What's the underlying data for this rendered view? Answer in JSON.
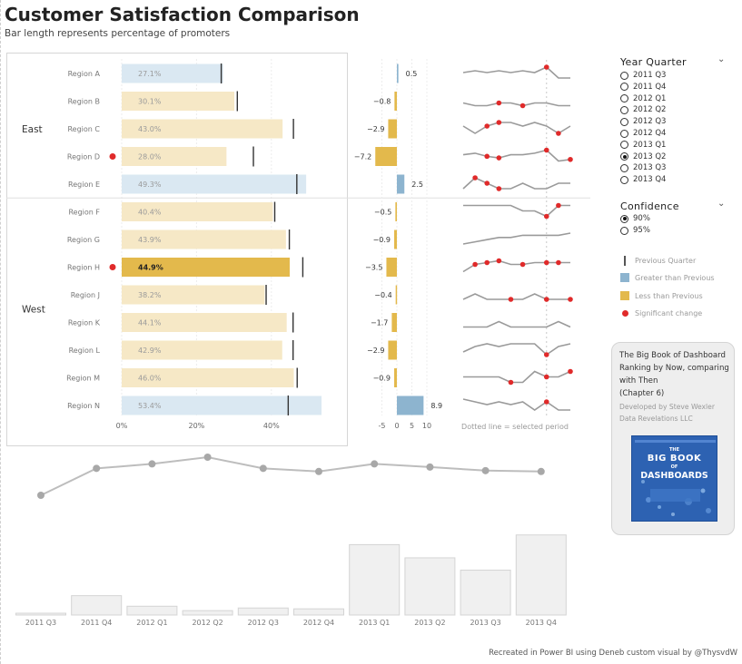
{
  "header": {
    "title": "Customer Satisfaction Comparison",
    "subtitle": "Bar length represents percentage of promoters"
  },
  "colors": {
    "greater": "#dae8f2",
    "greater_selected": "#8db4cf",
    "less": "#f6e8c6",
    "less_selected": "#e3b94c",
    "significant": "#e02a2a",
    "line": "#9a9a9a"
  },
  "chart_data": [
    {
      "type": "bar",
      "name_hint": "promoters-by-region",
      "groups": [
        {
          "label": "East",
          "regions": [
            "Region A",
            "Region B",
            "Region C",
            "Region D",
            "Region E"
          ]
        },
        {
          "label": "West",
          "regions": [
            "Region F",
            "Region G",
            "Region H",
            "Region J",
            "Region K",
            "Region L",
            "Region M",
            "Region N"
          ]
        }
      ],
      "rows": [
        {
          "region": "Region A",
          "value": 27.1,
          "label": "27.1%",
          "previous": 26.6,
          "change": 0.5,
          "direction": "greater",
          "significant": false,
          "selected": false
        },
        {
          "region": "Region B",
          "value": 30.1,
          "label": "30.1%",
          "previous": 30.9,
          "change": -0.8,
          "direction": "less",
          "significant": false,
          "selected": false
        },
        {
          "region": "Region C",
          "value": 43.0,
          "label": "43.0%",
          "previous": 45.9,
          "change": -2.9,
          "direction": "less",
          "significant": false,
          "selected": false
        },
        {
          "region": "Region D",
          "value": 28.0,
          "label": "28.0%",
          "previous": 35.2,
          "change": -7.2,
          "direction": "less",
          "significant": true,
          "selected": true
        },
        {
          "region": "Region E",
          "value": 49.3,
          "label": "49.3%",
          "previous": 46.8,
          "change": 2.5,
          "direction": "greater",
          "significant": false,
          "selected": true
        },
        {
          "region": "Region F",
          "value": 40.4,
          "label": "40.4%",
          "previous": 40.9,
          "change": -0.5,
          "direction": "less",
          "significant": false,
          "selected": false
        },
        {
          "region": "Region G",
          "value": 43.9,
          "label": "43.9%",
          "previous": 44.8,
          "change": -0.9,
          "direction": "less",
          "significant": false,
          "selected": false
        },
        {
          "region": "Region H",
          "value": 44.9,
          "label": "44.9%",
          "previous": 48.4,
          "change": -3.5,
          "direction": "less",
          "significant": true,
          "selected": true
        },
        {
          "region": "Region J",
          "value": 38.2,
          "label": "38.2%",
          "previous": 38.6,
          "change": -0.4,
          "direction": "less",
          "significant": false,
          "selected": false
        },
        {
          "region": "Region K",
          "value": 44.1,
          "label": "44.1%",
          "previous": 45.8,
          "change": -1.7,
          "direction": "less",
          "significant": false,
          "selected": false
        },
        {
          "region": "Region L",
          "value": 42.9,
          "label": "42.9%",
          "previous": 45.8,
          "change": -2.9,
          "direction": "less",
          "significant": false,
          "selected": false
        },
        {
          "region": "Region M",
          "value": 46.0,
          "label": "46.0%",
          "previous": 46.9,
          "change": -0.9,
          "direction": "less",
          "significant": false,
          "selected": false
        },
        {
          "region": "Region N",
          "value": 53.4,
          "label": "53.4%",
          "previous": 44.5,
          "change": 8.9,
          "direction": "greater",
          "significant": false,
          "selected": true
        }
      ],
      "x_ticks": [
        {
          "value": 0,
          "label": "0%"
        },
        {
          "value": 20,
          "label": "20%"
        },
        {
          "value": 40,
          "label": "40%"
        }
      ],
      "xlim": [
        0,
        56
      ],
      "grid": true
    },
    {
      "type": "bar",
      "name_hint": "change-vs-previous",
      "x_ticks": [
        {
          "value": -5,
          "label": "-5"
        },
        {
          "value": 0,
          "label": "0"
        },
        {
          "value": 5,
          "label": "5"
        },
        {
          "value": 10,
          "label": "10"
        }
      ],
      "xlim": [
        -8,
        12
      ],
      "grid": true
    },
    {
      "type": "line",
      "name_hint": "sparklines",
      "x": [
        "2011 Q3",
        "2011 Q4",
        "2012 Q1",
        "2012 Q2",
        "2012 Q3",
        "2012 Q4",
        "2013 Q1",
        "2013 Q2",
        "2013 Q3",
        "2013 Q4"
      ],
      "selected_period": "2013 Q2",
      "footnote": "Dotted line = selected period",
      "series": [
        {
          "values": [
            30,
            31,
            30,
            31,
            30,
            31,
            30,
            33,
            27,
            27
          ],
          "significant_points": [
            7
          ]
        },
        {
          "values": [
            30,
            29.5,
            29.5,
            30,
            30,
            29.5,
            30,
            30,
            29.5,
            29.5
          ],
          "significant_points": [
            3,
            5
          ]
        },
        {
          "values": [
            45,
            43,
            45,
            46,
            46,
            45,
            46,
            45,
            43,
            45
          ],
          "significant_points": [
            2,
            3,
            8
          ]
        },
        {
          "values": [
            32,
            33,
            31,
            30,
            32,
            32,
            33,
            35,
            28,
            29
          ],
          "significant_points": [
            2,
            3,
            7,
            9
          ]
        },
        {
          "values": [
            48,
            50,
            49,
            48,
            48,
            49,
            48,
            48,
            49,
            49
          ],
          "significant_points": [
            1,
            2,
            3
          ]
        },
        {
          "values": [
            41,
            41,
            41,
            41,
            41,
            40,
            40,
            39,
            41,
            41
          ],
          "significant_points": [
            7,
            8
          ]
        },
        {
          "values": [
            39,
            40,
            41,
            42,
            42,
            43,
            43,
            43,
            43,
            44
          ],
          "significant_points": []
        },
        {
          "values": [
            39,
            43,
            44,
            45,
            43,
            43,
            44,
            44,
            44,
            44
          ],
          "significant_points": [
            1,
            2,
            3,
            5,
            7,
            8
          ]
        },
        {
          "values": [
            39,
            40,
            39,
            39,
            39,
            39,
            40,
            39,
            39,
            39
          ],
          "significant_points": [
            4,
            7,
            9
          ]
        },
        {
          "values": [
            44,
            44,
            44,
            45,
            44,
            44,
            44,
            44,
            45,
            44
          ],
          "significant_points": []
        },
        {
          "values": [
            40,
            42,
            43,
            42,
            43,
            43,
            43,
            39,
            42,
            43
          ],
          "significant_points": [
            7
          ]
        },
        {
          "values": [
            45,
            45,
            45,
            45,
            44,
            44,
            46,
            45,
            45,
            46
          ],
          "significant_points": [
            4,
            7,
            9
          ]
        },
        {
          "values": [
            48,
            47,
            46,
            47,
            46,
            47,
            44,
            47,
            44,
            44
          ],
          "significant_points": [
            7
          ]
        }
      ]
    },
    {
      "type": "line",
      "name_hint": "overall-trend",
      "x": [
        "2011 Q3",
        "2011 Q4",
        "2012 Q1",
        "2012 Q2",
        "2012 Q3",
        "2012 Q4",
        "2013 Q1",
        "2013 Q2",
        "2013 Q3",
        "2013 Q4"
      ],
      "values": [
        38,
        44,
        45,
        46.5,
        44,
        43.3,
        45,
        44.3,
        43.5,
        43.3
      ]
    },
    {
      "type": "bar",
      "name_hint": "respondents-by-quarter",
      "categories": [
        "2011 Q3",
        "2011 Q4",
        "2012 Q1",
        "2012 Q2",
        "2012 Q3",
        "2012 Q4",
        "2013 Q1",
        "2013 Q2",
        "2013 Q3",
        "2013 Q4"
      ],
      "values": [
        2,
        22,
        10,
        5,
        8,
        7,
        80,
        65,
        51,
        91
      ],
      "selected": "2013 Q2"
    }
  ],
  "year_quarter_slicer": {
    "title": "Year Quarter",
    "options": [
      "2011 Q3",
      "2011 Q4",
      "2012 Q1",
      "2012 Q2",
      "2012 Q3",
      "2012 Q4",
      "2013 Q1",
      "2013 Q2",
      "2013 Q3",
      "2013 Q4"
    ],
    "selected": "2013 Q2"
  },
  "confidence_slicer": {
    "title": "Confidence",
    "options": [
      "90%",
      "95%"
    ],
    "selected": "90%"
  },
  "legend": {
    "previous": "Previous Quarter",
    "greater": "Greater than Previous",
    "less": "Less than Previous",
    "significant": "Significant change"
  },
  "book": {
    "line1": "The Big Book of Dashboard",
    "line2": "Ranking by Now, comparing",
    "line3": "with Then",
    "line4": "(Chapter 6)",
    "credit1": "Developed by Steve Wexler",
    "credit2": "Data Revelations LLC",
    "cover_the": "THE",
    "cover_big_book": "BIG BOOK",
    "cover_of": "OF",
    "cover_dashboards": "DASHBOARDS"
  },
  "footer": "Recreated in Power BI using Deneb custom visual by @ThysvdW"
}
